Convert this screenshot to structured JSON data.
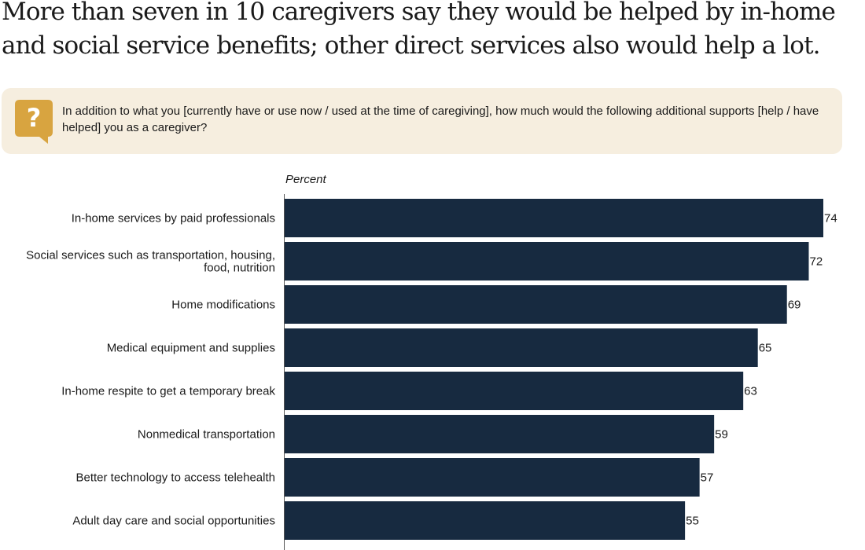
{
  "headline": "More than seven in 10 caregivers say they would be helped by in-home and social service benefits; other direct services also would help a lot.",
  "question": {
    "icon": "question-mark-speech-bubble-icon",
    "text": "In addition to what you [currently have or use now / used at the time of caregiving], how much would the following additional supports [help / have helped] you as a caregiver?"
  },
  "colors": {
    "bar": "#172a40",
    "question_box": "#f6eedf",
    "icon": "#d8a440"
  },
  "chart_data": {
    "type": "bar",
    "orientation": "horizontal",
    "unit_label": "Percent",
    "categories": [
      [
        "In-home services by paid professionals"
      ],
      [
        "Social services such as transportation, housing,",
        "food, nutrition"
      ],
      [
        "Home modifications"
      ],
      [
        "Medical equipment and supplies"
      ],
      [
        "In-home respite to get a temporary break"
      ],
      [
        "Nonmedical transportation"
      ],
      [
        "Better technology to access telehealth"
      ],
      [
        "Adult day care and social opportunities"
      ]
    ],
    "values": [
      74,
      72,
      69,
      65,
      63,
      59,
      57,
      55
    ],
    "xlim": [
      0,
      74
    ],
    "grid": false,
    "legend": "none"
  }
}
